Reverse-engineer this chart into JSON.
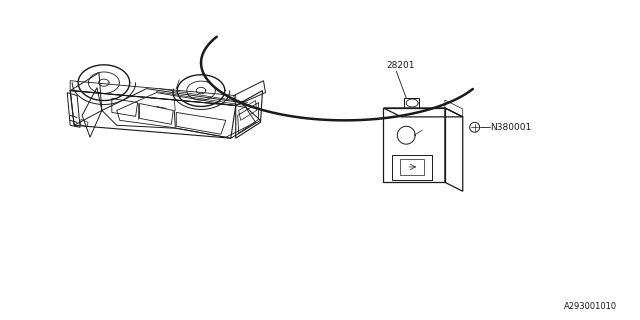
{
  "bg_color": "#ffffff",
  "line_color": "#1a1a1a",
  "part_number_28201": "28201",
  "part_number_N380001": "N380001",
  "diagram_id": "A293001010",
  "font_size_parts": 6.5,
  "font_size_diagram_id": 6.0,
  "figsize": [
    6.4,
    3.2
  ],
  "dpi": 100
}
